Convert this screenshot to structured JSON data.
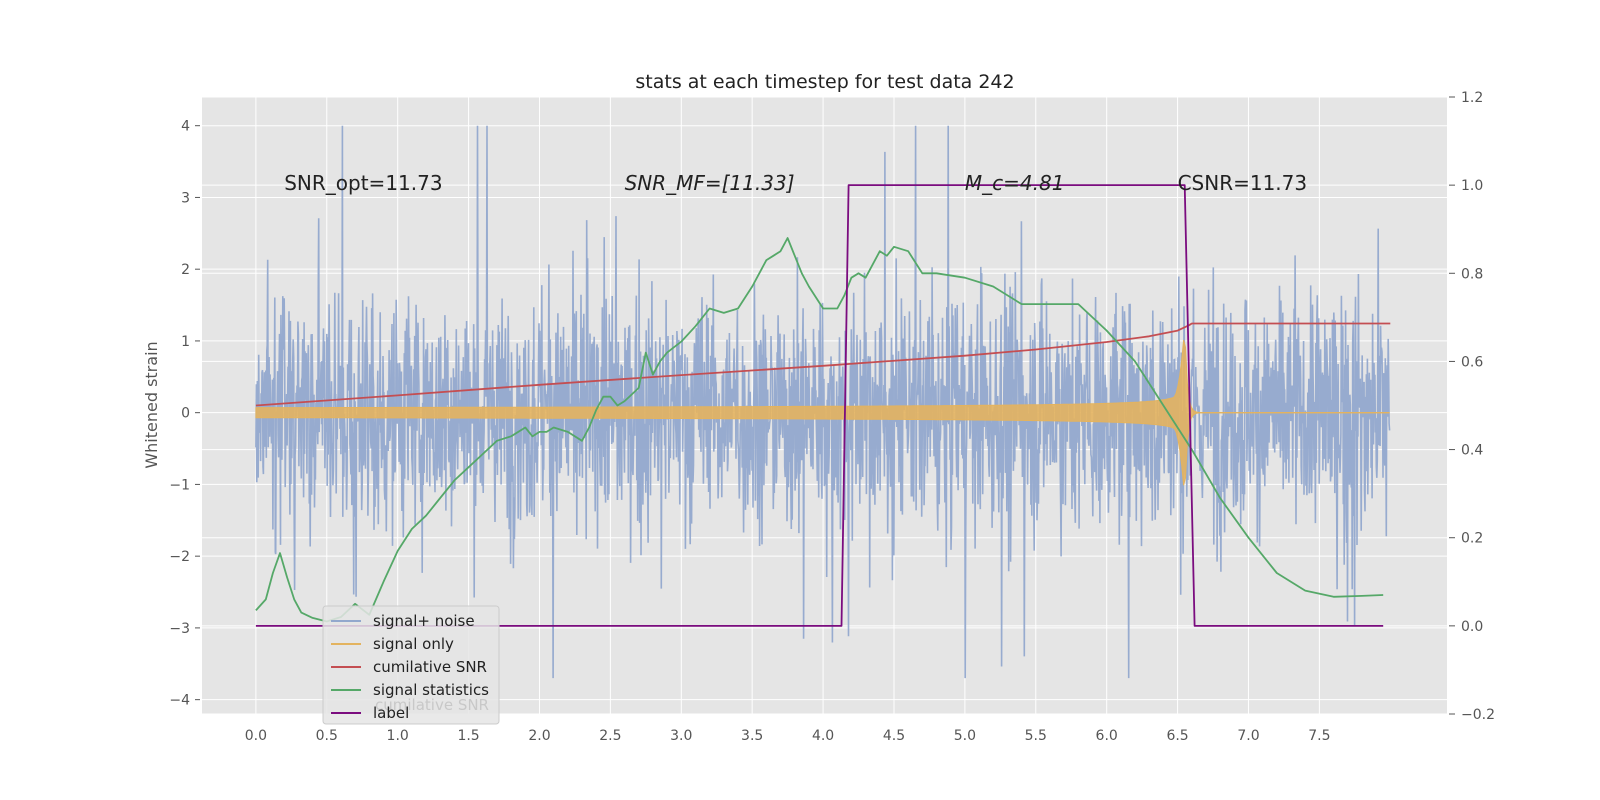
{
  "chart_data": {
    "type": "line",
    "title": "stats at each timestep for test data 242",
    "ylabel": "Whitened strain",
    "y2label": "",
    "xlabel": "",
    "xlim": [
      -0.38,
      8.4
    ],
    "ylim": [
      -4.2,
      4.4
    ],
    "y2lim": [
      -0.2,
      1.2
    ],
    "xticks": [
      "0.0",
      "0.5",
      "1.0",
      "1.5",
      "2.0",
      "2.5",
      "3.0",
      "3.5",
      "4.0",
      "4.5",
      "5.0",
      "5.5",
      "6.0",
      "6.5",
      "7.0",
      "7.5"
    ],
    "yticks": [
      "4",
      "3",
      "2",
      "1",
      "0",
      "−1",
      "−2",
      "−3",
      "−4"
    ],
    "y2ticks": [
      "1.2",
      "1.0",
      "0.8",
      "0.6",
      "0.4",
      "0.2",
      "0.0",
      "−0.2"
    ],
    "background": "#e5e5e5",
    "grid": true,
    "annotations": [
      {
        "text": "SNR_opt=11.73",
        "x": 0.2,
        "y": 3.2,
        "italic": false
      },
      {
        "text": "SNR_MF=[11.33]",
        "x": 2.6,
        "y": 3.2,
        "italic": true
      },
      {
        "text": "M_c=4.81",
        "x": 5.0,
        "y": 3.2,
        "italic": true
      },
      {
        "text": "CSNR=11.73",
        "x": 6.5,
        "y": 3.2,
        "italic": false
      }
    ],
    "series": [
      {
        "name": "signal+ noise",
        "color": "#92a8cd",
        "axis": "left",
        "kind": "noise",
        "amplitude_range": [
          -3.7,
          4.0
        ]
      },
      {
        "name": "signal only",
        "color": "#e3b35f",
        "axis": "left",
        "kind": "chirp",
        "merger_time": 6.55,
        "peak_amplitude": 1.3
      },
      {
        "name": "cumilative SNR",
        "color": "#c44e52",
        "axis": "right",
        "x": [
          0.0,
          1.0,
          2.0,
          3.0,
          4.0,
          5.0,
          5.5,
          6.0,
          6.3,
          6.5,
          6.58,
          6.6,
          8.0
        ],
        "y": [
          0.5,
          0.523,
          0.547,
          0.569,
          0.59,
          0.613,
          0.627,
          0.644,
          0.657,
          0.67,
          0.682,
          0.686,
          0.686
        ]
      },
      {
        "name": "signal statistics",
        "color": "#55a868",
        "axis": "right",
        "x": [
          0.0,
          0.07,
          0.12,
          0.17,
          0.22,
          0.27,
          0.32,
          0.4,
          0.5,
          0.6,
          0.7,
          0.8,
          0.9,
          1.0,
          1.1,
          1.2,
          1.3,
          1.4,
          1.5,
          1.6,
          1.7,
          1.8,
          1.9,
          1.95,
          2.0,
          2.05,
          2.1,
          2.2,
          2.3,
          2.35,
          2.4,
          2.45,
          2.5,
          2.55,
          2.6,
          2.65,
          2.7,
          2.75,
          2.8,
          2.85,
          2.9,
          3.0,
          3.1,
          3.2,
          3.3,
          3.4,
          3.5,
          3.6,
          3.65,
          3.7,
          3.75,
          3.8,
          3.85,
          3.9,
          4.0,
          4.1,
          4.15,
          4.2,
          4.25,
          4.3,
          4.4,
          4.45,
          4.5,
          4.6,
          4.7,
          4.8,
          5.0,
          5.2,
          5.4,
          5.6,
          5.8,
          6.0,
          6.2,
          6.4,
          6.6,
          6.8,
          7.0,
          7.2,
          7.4,
          7.6,
          7.8,
          7.95
        ],
        "y": [
          0.035,
          0.06,
          0.12,
          0.165,
          0.11,
          0.06,
          0.03,
          0.018,
          0.01,
          0.02,
          0.05,
          0.025,
          0.1,
          0.17,
          0.22,
          0.25,
          0.29,
          0.33,
          0.36,
          0.39,
          0.42,
          0.43,
          0.45,
          0.43,
          0.44,
          0.44,
          0.45,
          0.44,
          0.42,
          0.45,
          0.49,
          0.52,
          0.52,
          0.5,
          0.51,
          0.525,
          0.54,
          0.62,
          0.57,
          0.6,
          0.62,
          0.645,
          0.68,
          0.72,
          0.71,
          0.72,
          0.77,
          0.83,
          0.84,
          0.85,
          0.88,
          0.84,
          0.8,
          0.77,
          0.72,
          0.72,
          0.75,
          0.79,
          0.8,
          0.79,
          0.85,
          0.84,
          0.86,
          0.85,
          0.8,
          0.8,
          0.79,
          0.77,
          0.73,
          0.73,
          0.73,
          0.67,
          0.6,
          0.5,
          0.4,
          0.29,
          0.2,
          0.12,
          0.08,
          0.066,
          0.068,
          0.07
        ]
      },
      {
        "name": "label",
        "color": "#7b0c7f",
        "axis": "right",
        "x": [
          0.0,
          4.13,
          4.18,
          6.55,
          6.62,
          7.95
        ],
        "y": [
          0.0,
          0.0,
          1.0,
          1.0,
          0.0,
          0.0
        ]
      }
    ],
    "legend": {
      "location": "bottom-left",
      "items": [
        "signal+ noise",
        "signal only",
        "cumilative SNR",
        "signal statistics",
        "label"
      ],
      "ghost_text": "cumilative SNR"
    }
  }
}
